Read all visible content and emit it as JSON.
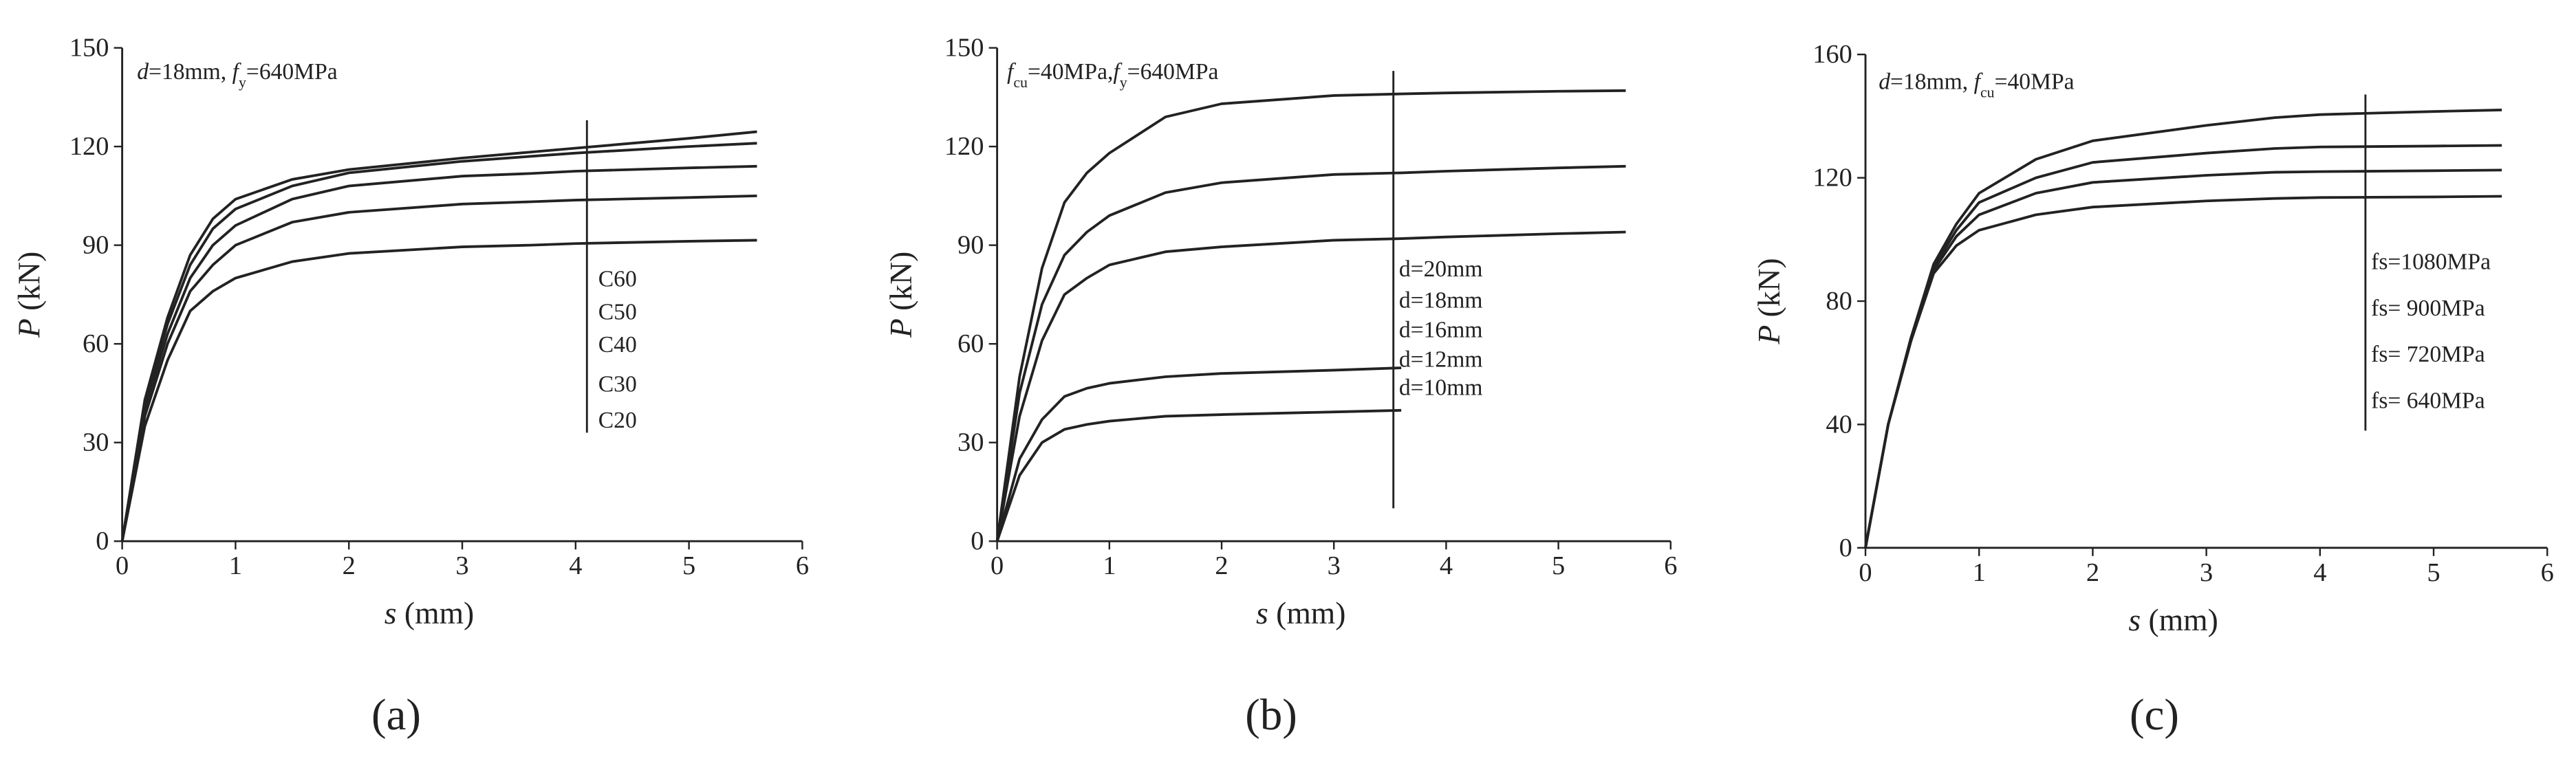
{
  "chart_data": [
    {
      "type": "line",
      "panel_label": "(a)",
      "annotation": [
        {
          "text": "d",
          "italic": true
        },
        {
          "text": "=18mm, "
        },
        {
          "text": "f",
          "italic": true
        },
        {
          "text": "y",
          "sub": true
        },
        {
          "text": "=640MPa"
        }
      ],
      "xlabel": [
        {
          "text": "s",
          "italic": true
        },
        {
          "text": " (mm)"
        }
      ],
      "ylabel": [
        {
          "text": "P",
          "italic": true
        },
        {
          "text": " (kN)"
        }
      ],
      "x": [
        0,
        0.2,
        0.4,
        0.6,
        0.8,
        1,
        1.5,
        2,
        3,
        3.6,
        4,
        5,
        5.6
      ],
      "xlim": [
        0,
        6
      ],
      "xticks": [
        0,
        1,
        2,
        3,
        4,
        5,
        6
      ],
      "ylim": [
        0,
        150
      ],
      "yticks": [
        0,
        30,
        60,
        90,
        120,
        150
      ],
      "series": [
        {
          "name": "C60",
          "color": "#222222",
          "values": [
            0,
            43,
            68,
            87,
            98,
            104,
            110,
            113,
            116.5,
            118.3,
            119.5,
            122.5,
            124.5
          ]
        },
        {
          "name": "C50",
          "color": "#222222",
          "values": [
            0,
            42,
            66,
            84,
            95,
            101,
            108,
            112,
            115.5,
            117,
            118,
            120,
            121
          ]
        },
        {
          "name": "C40",
          "color": "#222222",
          "values": [
            0,
            40,
            63,
            80,
            90,
            96,
            104,
            108,
            111,
            111.8,
            112.5,
            113.5,
            114
          ]
        },
        {
          "name": "C30",
          "color": "#222222",
          "values": [
            0,
            38,
            60,
            76,
            84,
            90,
            97,
            100,
            102.5,
            103.2,
            103.7,
            104.5,
            105
          ]
        },
        {
          "name": "C20",
          "color": "#222222",
          "values": [
            0,
            35,
            55,
            70,
            76,
            80,
            85,
            87.5,
            89.5,
            90,
            90.5,
            91.2,
            91.5
          ]
        }
      ]
    },
    {
      "type": "line",
      "panel_label": "(b)",
      "annotation": [
        {
          "text": "f",
          "italic": true
        },
        {
          "text": "cu",
          "sub": true
        },
        {
          "text": "=40MPa,"
        },
        {
          "text": "f",
          "italic": true
        },
        {
          "text": "y",
          "sub": true
        },
        {
          "text": "=640MPa"
        }
      ],
      "xlabel": [
        {
          "text": "s",
          "italic": true
        },
        {
          "text": " (mm)"
        }
      ],
      "ylabel": [
        {
          "text": "P",
          "italic": true
        },
        {
          "text": " (kN)"
        }
      ],
      "x": [
        0,
        0.2,
        0.4,
        0.6,
        0.8,
        1,
        1.5,
        2,
        3,
        3.6,
        4,
        5,
        5.6
      ],
      "xlim": [
        0,
        6
      ],
      "xticks": [
        0,
        1,
        2,
        3,
        4,
        5,
        6
      ],
      "ylim": [
        0,
        150
      ],
      "yticks": [
        0,
        30,
        60,
        90,
        120,
        150
      ],
      "series": [
        {
          "name": "d=20mm",
          "color": "#222222",
          "values": [
            0,
            50,
            83,
            103,
            112,
            118,
            129,
            133,
            135.5,
            136,
            136.3,
            136.8,
            137
          ]
        },
        {
          "name": "d=18mm",
          "color": "#222222",
          "values": [
            0,
            45,
            72,
            87,
            94,
            99,
            106,
            109,
            111.5,
            112,
            112.5,
            113.5,
            114
          ]
        },
        {
          "name": "d=16mm",
          "color": "#222222",
          "values": [
            0,
            38,
            61,
            75,
            80,
            84,
            88,
            89.5,
            91.5,
            92,
            92.5,
            93.5,
            94
          ]
        },
        {
          "name": "d=12mm",
          "color": "#222222",
          "values": [
            0,
            25,
            37,
            44,
            46.5,
            48,
            50,
            51,
            52,
            52.7,
            null,
            null,
            null
          ]
        },
        {
          "name": "d=10mm",
          "color": "#222222",
          "values": [
            0,
            20,
            30,
            34,
            35.5,
            36.5,
            38,
            38.5,
            39.3,
            39.8,
            null,
            null,
            null
          ]
        }
      ]
    },
    {
      "type": "line",
      "panel_label": "(c)",
      "annotation": [
        {
          "text": "d",
          "italic": true
        },
        {
          "text": "=18mm, "
        },
        {
          "text": "f",
          "italic": true
        },
        {
          "text": "cu",
          "sub": true
        },
        {
          "text": "=40MPa"
        }
      ],
      "xlabel": [
        {
          "text": "s",
          "italic": true
        },
        {
          "text": " (mm)"
        }
      ],
      "ylabel": [
        {
          "text": "P",
          "italic": true
        },
        {
          "text": " (kN)"
        }
      ],
      "x": [
        0,
        0.2,
        0.4,
        0.6,
        0.8,
        1,
        1.5,
        2,
        3,
        3.6,
        4,
        5,
        5.6
      ],
      "xlim": [
        0,
        6
      ],
      "xticks": [
        0,
        1,
        2,
        3,
        4,
        5,
        6
      ],
      "ylim": [
        0,
        160
      ],
      "yticks": [
        0,
        40,
        80,
        120,
        160
      ],
      "series": [
        {
          "name": "fs=1080MPa",
          "color": "#222222",
          "values": [
            0,
            40,
            68,
            92,
            105,
            115,
            126,
            132,
            137,
            139.5,
            140.5,
            141.5,
            142
          ]
        },
        {
          "name": "fs= 900MPa",
          "color": "#222222",
          "values": [
            0,
            40,
            68,
            91,
            103,
            112,
            120,
            125,
            128,
            129.5,
            130,
            130.3,
            130.5
          ]
        },
        {
          "name": "fs= 720MPa",
          "color": "#222222",
          "values": [
            0,
            40,
            67,
            90,
            101,
            108,
            115,
            118.5,
            120.8,
            121.8,
            122,
            122.3,
            122.5
          ]
        },
        {
          "name": "fs= 640MPa",
          "color": "#222222",
          "values": [
            0,
            40,
            67,
            89,
            98,
            103,
            108,
            110.5,
            112.5,
            113.3,
            113.6,
            113.8,
            114
          ]
        }
      ]
    }
  ]
}
